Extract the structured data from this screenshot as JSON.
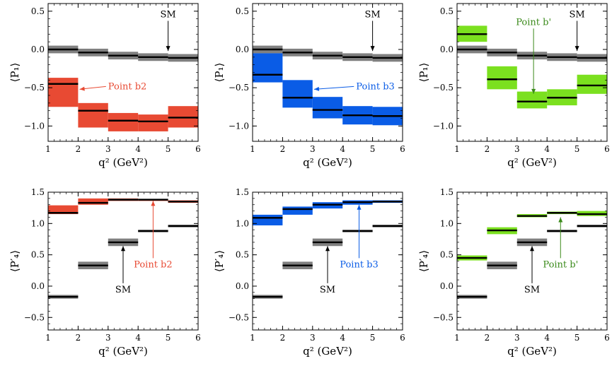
{
  "chart_data": [
    {
      "type": "bar",
      "panel": "top-left",
      "ylabel": "⟨P₁⟩",
      "xlabel": "q² (GeV²)",
      "xlim": [
        1,
        6
      ],
      "ylim": [
        -1.2,
        0.6
      ],
      "xticks": [
        "1",
        "2",
        "3",
        "4",
        "5",
        "6"
      ],
      "yticks": [
        "0.5",
        "0.0",
        "−0.5",
        "−1.0"
      ],
      "ytick_values": [
        0.5,
        0.0,
        -0.5,
        -1.0
      ],
      "bins": [
        [
          1,
          2
        ],
        [
          2,
          3
        ],
        [
          3,
          4
        ],
        [
          4,
          5
        ],
        [
          5,
          6
        ]
      ],
      "series": [
        {
          "name": "SM",
          "color": "#808080",
          "central": [
            0.0,
            -0.04,
            -0.08,
            -0.1,
            -0.11
          ],
          "lower": [
            -0.05,
            -0.09,
            -0.13,
            -0.15,
            -0.16
          ],
          "upper": [
            0.05,
            0.01,
            -0.03,
            -0.05,
            -0.06
          ]
        },
        {
          "name": "Point b2",
          "color": "#e84a33",
          "central": [
            -0.45,
            -0.8,
            -0.93,
            -0.94,
            -0.89
          ],
          "lower": [
            -0.75,
            -1.02,
            -1.07,
            -1.07,
            -1.02
          ],
          "upper": [
            -0.37,
            -0.7,
            -0.83,
            -0.85,
            -0.74
          ]
        }
      ],
      "annotations": [
        {
          "text": "SM",
          "color": "#000000",
          "data_x": 5.0,
          "data_y": 0.42,
          "align": "middle",
          "arrow_to": [
            5.0,
            -0.02
          ]
        },
        {
          "text": "Point b2",
          "color": "#e84a33",
          "data_x": 3.0,
          "data_y": -0.52,
          "align": "start",
          "arrow_to": [
            2.05,
            -0.52
          ]
        }
      ]
    },
    {
      "type": "bar",
      "panel": "top-middle",
      "ylabel": "⟨P₁⟩",
      "xlabel": "q² (GeV²)",
      "xlim": [
        1,
        6
      ],
      "ylim": [
        -1.2,
        0.6
      ],
      "xticks": [
        "1",
        "2",
        "3",
        "4",
        "5",
        "6"
      ],
      "yticks": [
        "0.5",
        "0.0",
        "−0.5",
        "−1.0"
      ],
      "ytick_values": [
        0.5,
        0.0,
        -0.5,
        -1.0
      ],
      "bins": [
        [
          1,
          2
        ],
        [
          2,
          3
        ],
        [
          3,
          4
        ],
        [
          4,
          5
        ],
        [
          5,
          6
        ]
      ],
      "series": [
        {
          "name": "SM",
          "color": "#808080",
          "central": [
            0.0,
            -0.04,
            -0.08,
            -0.1,
            -0.11
          ],
          "lower": [
            -0.05,
            -0.09,
            -0.13,
            -0.15,
            -0.16
          ],
          "upper": [
            0.05,
            0.01,
            -0.03,
            -0.05,
            -0.06
          ]
        },
        {
          "name": "Point b3",
          "color": "#0a5ce6",
          "central": [
            -0.33,
            -0.63,
            -0.79,
            -0.86,
            -0.87
          ],
          "lower": [
            -0.43,
            -0.76,
            -0.9,
            -0.98,
            -0.99
          ],
          "upper": [
            -0.05,
            -0.4,
            -0.62,
            -0.74,
            -0.75
          ]
        }
      ],
      "annotations": [
        {
          "text": "SM",
          "color": "#000000",
          "data_x": 5.0,
          "data_y": 0.42,
          "align": "middle",
          "arrow_to": [
            5.0,
            -0.02
          ]
        },
        {
          "text": "Point b3",
          "color": "#0a5ce6",
          "data_x": 4.45,
          "data_y": -0.52,
          "align": "start",
          "arrow_to": [
            3.05,
            -0.52
          ]
        }
      ]
    },
    {
      "type": "bar",
      "panel": "top-right",
      "ylabel": "⟨P₁⟩",
      "xlabel": "q² (GeV²)",
      "xlim": [
        1,
        6
      ],
      "ylim": [
        -1.2,
        0.6
      ],
      "xticks": [
        "1",
        "2",
        "3",
        "4",
        "5",
        "6"
      ],
      "yticks": [
        "0.5",
        "0.0",
        "−0.5",
        "−1.0"
      ],
      "ytick_values": [
        0.5,
        0.0,
        -0.5,
        -1.0
      ],
      "bins": [
        [
          1,
          2
        ],
        [
          2,
          3
        ],
        [
          3,
          4
        ],
        [
          4,
          5
        ],
        [
          5,
          6
        ]
      ],
      "series": [
        {
          "name": "SM",
          "color": "#808080",
          "central": [
            0.0,
            -0.04,
            -0.08,
            -0.1,
            -0.11
          ],
          "lower": [
            -0.05,
            -0.09,
            -0.13,
            -0.15,
            -0.16
          ],
          "upper": [
            0.05,
            0.01,
            -0.03,
            -0.05,
            -0.06
          ]
        },
        {
          "name": "Point b'",
          "color": "#7be01f",
          "central": [
            0.2,
            -0.39,
            -0.68,
            -0.63,
            -0.47
          ],
          "lower": [
            0.1,
            -0.52,
            -0.77,
            -0.73,
            -0.58
          ],
          "upper": [
            0.31,
            -0.22,
            -0.55,
            -0.52,
            -0.33
          ]
        }
      ],
      "annotations": [
        {
          "text": "SM",
          "color": "#000000",
          "data_x": 5.0,
          "data_y": 0.42,
          "align": "middle",
          "arrow_to": [
            5.0,
            -0.02
          ]
        },
        {
          "text": "Point b'",
          "color": "#3a8a1a",
          "data_x": 3.55,
          "data_y": 0.32,
          "align": "middle",
          "arrow_to": [
            3.55,
            -0.58
          ]
        }
      ]
    },
    {
      "type": "bar",
      "panel": "bottom-left",
      "ylabel": "⟨P′₄⟩",
      "xlabel": "q² (GeV²)",
      "xlim": [
        1,
        6
      ],
      "ylim": [
        -0.7,
        1.5
      ],
      "xticks": [
        "1",
        "2",
        "3",
        "4",
        "5",
        "6"
      ],
      "yticks": [
        "1.5",
        "1.0",
        "0.5",
        "0.0",
        "−0.5"
      ],
      "ytick_values": [
        1.5,
        1.0,
        0.5,
        0.0,
        -0.5
      ],
      "bins": [
        [
          1,
          2
        ],
        [
          2,
          3
        ],
        [
          3,
          4
        ],
        [
          4,
          5
        ],
        [
          5,
          6
        ]
      ],
      "series": [
        {
          "name": "SM",
          "color": "#808080",
          "central": [
            -0.17,
            0.33,
            0.7,
            0.88,
            0.96
          ],
          "lower": [
            -0.2,
            0.27,
            0.64,
            0.86,
            0.94
          ],
          "upper": [
            -0.14,
            0.39,
            0.76,
            0.9,
            0.98
          ]
        },
        {
          "name": "Point b2",
          "color": "#e84a33",
          "central": [
            1.17,
            1.33,
            1.38,
            1.38,
            1.35
          ],
          "lower": [
            1.15,
            1.3,
            1.36,
            1.36,
            1.33
          ],
          "upper": [
            1.29,
            1.4,
            1.4,
            1.39,
            1.37
          ]
        }
      ],
      "annotations": [
        {
          "text": "SM",
          "color": "#000000",
          "data_x": 3.5,
          "data_y": -0.1,
          "align": "middle",
          "arrow_to": [
            3.5,
            0.64
          ]
        },
        {
          "text": "Point b2",
          "color": "#e84a33",
          "data_x": 4.5,
          "data_y": 0.3,
          "align": "middle",
          "arrow_to": [
            4.5,
            1.36
          ]
        }
      ]
    },
    {
      "type": "bar",
      "panel": "bottom-middle",
      "ylabel": "⟨P′₄⟩",
      "xlabel": "q² (GeV²)",
      "xlim": [
        1,
        6
      ],
      "ylim": [
        -0.7,
        1.5
      ],
      "xticks": [
        "1",
        "2",
        "3",
        "4",
        "5",
        "6"
      ],
      "yticks": [
        "1.5",
        "1.0",
        "0.5",
        "0.0",
        "−0.5"
      ],
      "ytick_values": [
        1.5,
        1.0,
        0.5,
        0.0,
        -0.5
      ],
      "bins": [
        [
          1,
          2
        ],
        [
          2,
          3
        ],
        [
          3,
          4
        ],
        [
          4,
          5
        ],
        [
          5,
          6
        ]
      ],
      "series": [
        {
          "name": "SM",
          "color": "#808080",
          "central": [
            -0.17,
            0.33,
            0.7,
            0.88,
            0.96
          ],
          "lower": [
            -0.2,
            0.27,
            0.64,
            0.86,
            0.94
          ],
          "upper": [
            -0.14,
            0.39,
            0.76,
            0.9,
            0.98
          ]
        },
        {
          "name": "Point b3",
          "color": "#0a5ce6",
          "central": [
            1.09,
            1.23,
            1.3,
            1.34,
            1.35
          ],
          "lower": [
            0.97,
            1.14,
            1.24,
            1.3,
            1.33
          ],
          "upper": [
            1.14,
            1.27,
            1.34,
            1.37,
            1.37
          ]
        }
      ],
      "annotations": [
        {
          "text": "SM",
          "color": "#000000",
          "data_x": 3.5,
          "data_y": -0.1,
          "align": "middle",
          "arrow_to": [
            3.5,
            0.64
          ]
        },
        {
          "text": "Point b3",
          "color": "#0a5ce6",
          "data_x": 4.55,
          "data_y": 0.3,
          "align": "middle",
          "arrow_to": [
            4.55,
            1.3
          ]
        }
      ]
    },
    {
      "type": "bar",
      "panel": "bottom-right",
      "ylabel": "⟨P′₄⟩",
      "xlabel": "q² (GeV²)",
      "xlim": [
        1,
        6
      ],
      "ylim": [
        -0.7,
        1.5
      ],
      "xticks": [
        "1",
        "2",
        "3",
        "4",
        "5",
        "6"
      ],
      "yticks": [
        "1.5",
        "1.0",
        "0.5",
        "0.0",
        "−0.5"
      ],
      "ytick_values": [
        1.5,
        1.0,
        0.5,
        0.0,
        -0.5
      ],
      "bins": [
        [
          1,
          2
        ],
        [
          2,
          3
        ],
        [
          3,
          4
        ],
        [
          4,
          5
        ],
        [
          5,
          6
        ]
      ],
      "series": [
        {
          "name": "SM",
          "color": "#808080",
          "central": [
            -0.17,
            0.33,
            0.7,
            0.88,
            0.96
          ],
          "lower": [
            -0.2,
            0.27,
            0.64,
            0.86,
            0.94
          ],
          "upper": [
            -0.14,
            0.39,
            0.76,
            0.9,
            0.98
          ]
        },
        {
          "name": "Point b'",
          "color": "#7be01f",
          "central": [
            0.45,
            0.89,
            1.12,
            1.17,
            1.15
          ],
          "lower": [
            0.41,
            0.83,
            1.1,
            1.15,
            1.12
          ],
          "upper": [
            0.49,
            0.94,
            1.15,
            1.19,
            1.2
          ]
        }
      ],
      "annotations": [
        {
          "text": "SM",
          "color": "#000000",
          "data_x": 3.5,
          "data_y": -0.1,
          "align": "middle",
          "arrow_to": [
            3.5,
            0.64
          ]
        },
        {
          "text": "Point b'",
          "color": "#3a8a1a",
          "data_x": 4.45,
          "data_y": 0.3,
          "align": "middle",
          "arrow_to": [
            4.45,
            1.1
          ]
        }
      ]
    }
  ]
}
